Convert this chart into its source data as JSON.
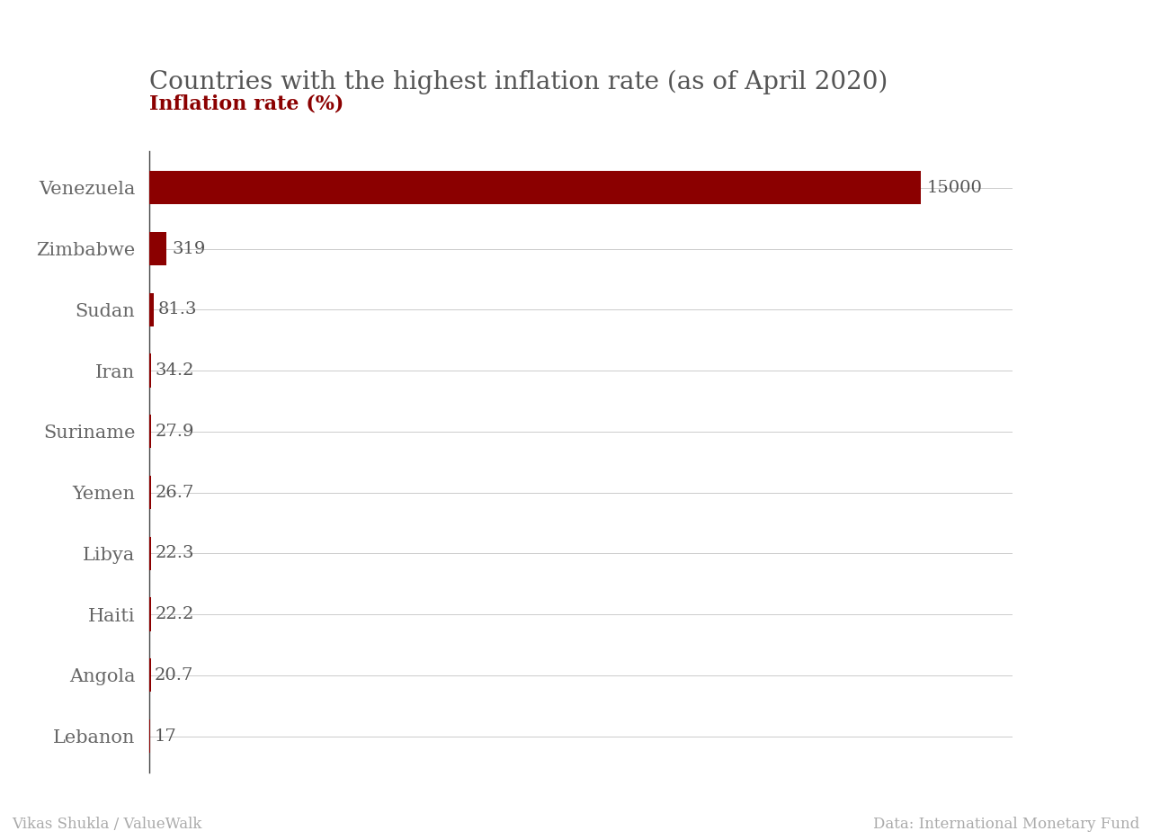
{
  "title": "Countries with the highest inflation rate (as of April 2020)",
  "xlabel": "Inflation rate (%)",
  "countries": [
    "Venezuela",
    "Zimbabwe",
    "Sudan",
    "Iran",
    "Suriname",
    "Yemen",
    "Libya",
    "Haiti",
    "Angola",
    "Lebanon"
  ],
  "values": [
    15000,
    319,
    81.3,
    34.2,
    27.9,
    26.7,
    22.3,
    22.2,
    20.7,
    17
  ],
  "labels": [
    "15000",
    "319",
    "81.3",
    "34.2",
    "27.9",
    "26.7",
    "22.3",
    "22.2",
    "20.7",
    "17"
  ],
  "bar_color": "#8B0000",
  "title_color": "#555555",
  "xlabel_color": "#8B0000",
  "label_color": "#555555",
  "country_color": "#666666",
  "footer_left": "Vikas Shukla / ValueWalk",
  "footer_right": "Data: International Monetary Fund",
  "footer_color": "#aaaaaa",
  "background_color": "#ffffff",
  "title_fontsize": 20,
  "xlabel_fontsize": 16,
  "bar_label_fontsize": 14,
  "country_fontsize": 15,
  "footer_fontsize": 12
}
